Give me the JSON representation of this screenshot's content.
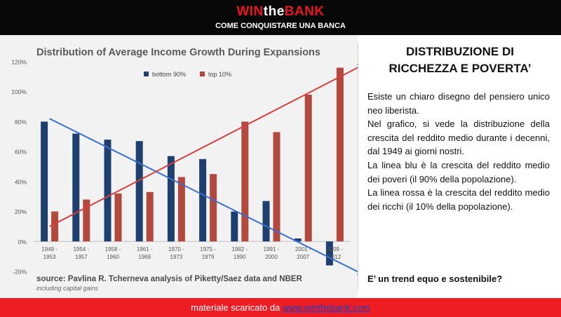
{
  "header": {
    "brand_red": "WIN",
    "brand_white": "the",
    "brand_red2": "BANK",
    "tagline": "COME CONQUISTARE UNA BANCA"
  },
  "chart_data": {
    "type": "bar",
    "title": "Distribution of Average Income Growth During Expansions",
    "categories": [
      [
        "1949 -",
        "1953"
      ],
      [
        "1954 -",
        "1957"
      ],
      [
        "1958 -",
        "1960"
      ],
      [
        "1961 -",
        "1969"
      ],
      [
        "1970 -",
        "1973"
      ],
      [
        "1975 -",
        "1979"
      ],
      [
        "1982 -",
        "1990"
      ],
      [
        "1991 -",
        "2000"
      ],
      [
        "2001 -",
        "2007"
      ],
      [
        "2009 -",
        "2012"
      ]
    ],
    "series": [
      {
        "name": "bottom 90%",
        "color": "#1f3f6e",
        "values": [
          80,
          72,
          68,
          67,
          57,
          55,
          20,
          27,
          2,
          -16
        ]
      },
      {
        "name": "top 10%",
        "color": "#b2493f",
        "values": [
          20,
          28,
          32,
          33,
          43,
          45,
          80,
          73,
          98,
          116
        ]
      }
    ],
    "ylim": [
      -20,
      120
    ],
    "yticks": [
      -20,
      0,
      20,
      40,
      60,
      80,
      100,
      120
    ],
    "ytick_labels": [
      "-20%",
      "0%",
      "20%",
      "40%",
      "60%",
      "80%",
      "100%",
      "120%"
    ],
    "legend_position": "top",
    "grid": false,
    "source": "source: Pavlina R. Tcherneva analysis of Piketty/Saez data and NBER",
    "note": "including capital gains",
    "trend_lines": [
      {
        "name": "blue trend",
        "color": "#3a6fd0",
        "from": [
          0,
          82
        ],
        "to": [
          9.9,
          -22
        ]
      },
      {
        "name": "red trend",
        "color": "#d64040",
        "from": [
          0,
          10
        ],
        "to": [
          9.9,
          118
        ]
      }
    ]
  },
  "right": {
    "title_line1": "DISTRIBUZIONE DI",
    "title_line2": "RICCHEZZA E POVERTA’",
    "para1": "Esiste un chiaro disegno del pensiero unico neo liberista.",
    "para2": "Nel grafico, si vede la distribuzione della crescita del reddito medio durante i decenni, dal 1949 ai giorni nostri.",
    "para3": "La linea blu è la crescita del reddito medio dei poveri (il 90% della popolazione).",
    "para4": "La linea rossa è la crescita del reddito medio dei ricchi (il 10% della popolazione).",
    "question": "E’ un trend equo e sostenibile?"
  },
  "footer": {
    "text": "materiale scaricato da ",
    "link": "www.winthebank.com"
  }
}
